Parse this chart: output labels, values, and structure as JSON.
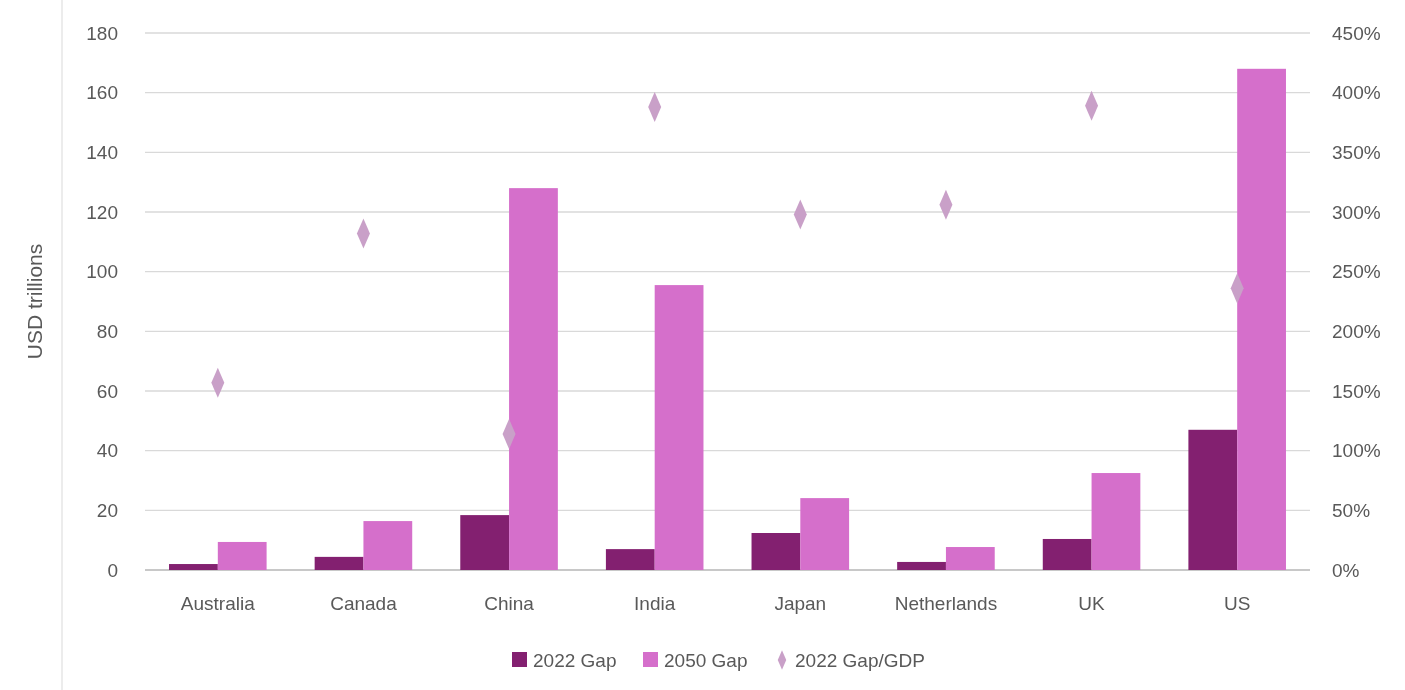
{
  "chart_data": {
    "type": "bar",
    "ylabel": "USD trillions",
    "categories": [
      "Australia",
      "Canada",
      "China",
      "India",
      "Japan",
      "Netherlands",
      "UK",
      "US"
    ],
    "series": [
      {
        "name": "2022 Gap",
        "color": "#832070",
        "values": [
          2,
          4.4,
          18.4,
          7,
          12.4,
          2.7,
          10.4,
          47
        ]
      },
      {
        "name": "2050 Gap",
        "color": "#d56fcb",
        "values": [
          9.4,
          16.4,
          128,
          95.5,
          24.1,
          7.7,
          32.5,
          168
        ]
      },
      {
        "name": "2022 Gap/GDP",
        "type": "scatter",
        "axis": "y2",
        "color": "#c9a0c8",
        "values": [
          157,
          282,
          114,
          388,
          298,
          306,
          389,
          236
        ]
      }
    ],
    "ylim": [
      0,
      180
    ],
    "yticks": [
      0,
      20,
      40,
      60,
      80,
      100,
      120,
      140,
      160,
      180
    ],
    "y2lim": [
      0,
      450
    ],
    "y2ticks": [
      {
        "value": 0,
        "label": "0%"
      },
      {
        "value": 50,
        "label": "50%"
      },
      {
        "value": 100,
        "label": "100%"
      },
      {
        "value": 150,
        "label": "150%"
      },
      {
        "value": 200,
        "label": "200%"
      },
      {
        "value": 250,
        "label": "250%"
      },
      {
        "value": 300,
        "label": "300%"
      },
      {
        "value": 350,
        "label": "350%"
      },
      {
        "value": 400,
        "label": "400%"
      },
      {
        "value": 450,
        "label": "450%"
      }
    ],
    "grid": "y",
    "legend": "bottom",
    "marker": "diamond"
  }
}
